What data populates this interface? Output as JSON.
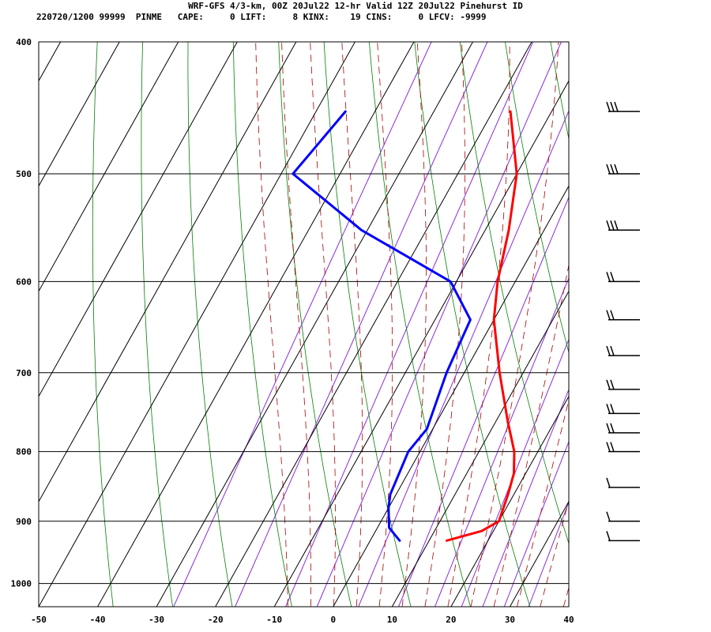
{
  "header": {
    "line1": "WRF-GFS 4/3-km, 00Z 20Jul22 12-hr Valid 12Z 20Jul22 Pinehurst ID",
    "line2": "220720/1200 99999  PINME   CAPE:     0 LIFT:     8 KINX:    19 CINS:     0 LFCV: -9999"
  },
  "chart_data": {
    "type": "line",
    "x_axis": {
      "type": "linear",
      "range": [
        -50,
        40
      ],
      "ticks": [
        -50,
        -40,
        -30,
        -20,
        -10,
        0,
        10,
        20,
        30,
        40
      ],
      "tick_labels": [
        "-50",
        "-40",
        "-30",
        "-20",
        "-10",
        "0",
        "10",
        "20",
        "30",
        "40"
      ]
    },
    "y_axis": {
      "type": "log",
      "inverted": true,
      "range": [
        400,
        1040
      ],
      "ticks": [
        400,
        500,
        600,
        700,
        800,
        900,
        1000
      ],
      "tick_labels": [
        "400",
        "500",
        "600",
        "700",
        "800",
        "900",
        "1000"
      ]
    },
    "grid": true,
    "series": [
      {
        "color": "#ff0000",
        "points": [
          [
            -17,
            450
          ],
          [
            -10,
            500
          ],
          [
            -6,
            550
          ],
          [
            -3,
            600
          ],
          [
            0,
            640
          ],
          [
            6,
            700
          ],
          [
            12,
            760
          ],
          [
            16,
            800
          ],
          [
            18,
            830
          ],
          [
            19,
            860
          ],
          [
            20,
            900
          ],
          [
            18,
            915
          ],
          [
            13,
            930
          ]
        ]
      },
      {
        "color": "#0000ff",
        "points": [
          [
            -45,
            450
          ],
          [
            -48,
            500
          ],
          [
            -31,
            550
          ],
          [
            -11,
            600
          ],
          [
            -4,
            640
          ],
          [
            -3,
            700
          ],
          [
            -1,
            770
          ],
          [
            -2,
            800
          ],
          [
            -1,
            860
          ],
          [
            0,
            880
          ],
          [
            2,
            910
          ],
          [
            5,
            930
          ]
        ]
      }
    ],
    "wind_barbs": [
      {
        "pressure": 450,
        "barb_count": 3
      },
      {
        "pressure": 500,
        "barb_count": 3
      },
      {
        "pressure": 550,
        "barb_count": 3
      },
      {
        "pressure": 600,
        "barb_count": 2
      },
      {
        "pressure": 640,
        "barb_count": 2
      },
      {
        "pressure": 680,
        "barb_count": 2
      },
      {
        "pressure": 720,
        "barb_count": 2
      },
      {
        "pressure": 750,
        "barb_count": 2
      },
      {
        "pressure": 775,
        "barb_count": 2
      },
      {
        "pressure": 800,
        "barb_count": 2
      },
      {
        "pressure": 850,
        "barb_count": 1
      },
      {
        "pressure": 900,
        "barb_count": 1
      },
      {
        "pressure": 930,
        "barb_count": 1
      }
    ],
    "colors": {
      "isotherm": "#000000",
      "dry_adiabat": "#008000",
      "moist_adiabat": "#aa0000",
      "mixing_ratio": "#8a2be2",
      "temperature": "#ff0000",
      "dewpoint": "#0000ff"
    }
  }
}
